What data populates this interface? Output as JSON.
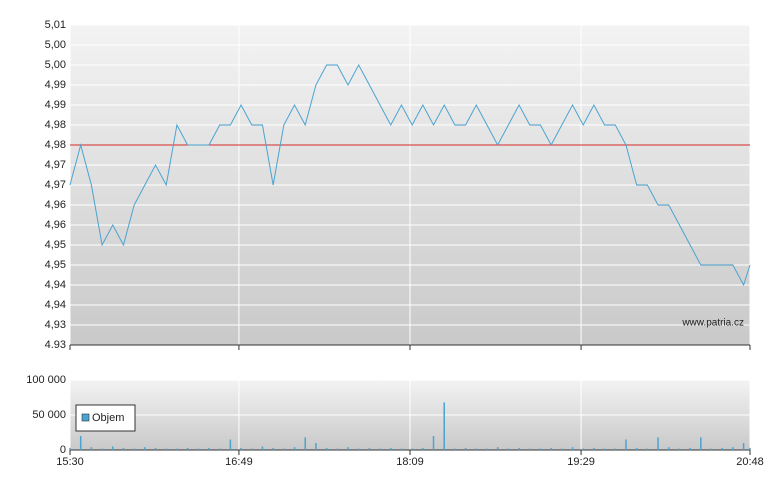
{
  "chart_data": [
    {
      "type": "line",
      "watermark": "www.patria.cz",
      "x": [
        "15:30",
        "15:35",
        "15:40",
        "15:45",
        "15:50",
        "15:55",
        "16:00",
        "16:05",
        "16:10",
        "16:15",
        "16:20",
        "16:25",
        "16:30",
        "16:35",
        "16:40",
        "16:45",
        "16:50",
        "16:55",
        "17:00",
        "17:05",
        "17:10",
        "17:15",
        "17:20",
        "17:25",
        "17:30",
        "17:35",
        "17:40",
        "17:45",
        "17:50",
        "17:55",
        "18:00",
        "18:05",
        "18:10",
        "18:15",
        "18:20",
        "18:25",
        "18:30",
        "18:35",
        "18:40",
        "18:45",
        "18:50",
        "18:55",
        "19:00",
        "19:05",
        "19:10",
        "19:15",
        "19:20",
        "19:25",
        "19:30",
        "19:35",
        "19:40",
        "19:45",
        "19:50",
        "19:55",
        "20:00",
        "20:05",
        "20:10",
        "20:15",
        "20:20",
        "20:25",
        "20:30",
        "20:35",
        "20:40",
        "20:45",
        "20:48"
      ],
      "series": [
        {
          "color": "#4aa3d1",
          "values": [
            4.97,
            4.98,
            4.97,
            4.955,
            4.96,
            4.955,
            4.965,
            4.97,
            4.975,
            4.97,
            4.985,
            4.98,
            4.98,
            4.98,
            4.985,
            4.985,
            4.99,
            4.985,
            4.985,
            4.97,
            4.985,
            4.99,
            4.985,
            4.995,
            5.0,
            5.0,
            4.995,
            5.0,
            4.995,
            4.99,
            4.985,
            4.99,
            4.985,
            4.99,
            4.985,
            4.99,
            4.985,
            4.985,
            4.99,
            4.985,
            4.98,
            4.985,
            4.99,
            4.985,
            4.985,
            4.98,
            4.985,
            4.99,
            4.985,
            4.99,
            4.985,
            4.985,
            4.98,
            4.97,
            4.97,
            4.965,
            4.965,
            4.96,
            4.955,
            4.95,
            4.95,
            4.95,
            4.95,
            4.945,
            4.95
          ]
        }
      ],
      "reference_line": 4.98,
      "reference_color": "#d42a2a",
      "xlim": [
        "15:30",
        "20:48"
      ],
      "xticks": [
        "15:30",
        "16:49",
        "18:09",
        "19:29",
        "20:48"
      ],
      "ylim": [
        4.93,
        5.01
      ],
      "yticks": [
        4.93,
        {
          "value": 4.935,
          "label": "4,93"
        },
        {
          "value": 4.94,
          "label": "4,94"
        },
        {
          "value": 4.945,
          "label": "4,94"
        },
        {
          "value": 4.95,
          "label": "4,95"
        },
        {
          "value": 4.955,
          "label": "4,95"
        },
        {
          "value": 4.96,
          "label": "4,96"
        },
        {
          "value": 4.965,
          "label": "4,96"
        },
        {
          "value": 4.97,
          "label": "4,97"
        },
        {
          "value": 4.975,
          "label": "4,97"
        },
        {
          "value": 4.98,
          "label": "4,98"
        },
        {
          "value": 4.985,
          "label": "4,98"
        },
        {
          "value": 4.99,
          "label": "4,99"
        },
        {
          "value": 4.995,
          "label": "4,99"
        },
        {
          "value": 5.0,
          "label": "5,00"
        },
        {
          "value": 5.005,
          "label": "5,00"
        },
        {
          "value": 5.01,
          "label": "5,01"
        }
      ],
      "grid": true
    },
    {
      "type": "bar",
      "x": [
        "15:30",
        "15:35",
        "15:40",
        "15:45",
        "15:50",
        "15:55",
        "16:00",
        "16:05",
        "16:10",
        "16:15",
        "16:20",
        "16:25",
        "16:30",
        "16:35",
        "16:40",
        "16:45",
        "16:50",
        "16:55",
        "17:00",
        "17:05",
        "17:10",
        "17:15",
        "17:20",
        "17:25",
        "17:30",
        "17:35",
        "17:40",
        "17:45",
        "17:50",
        "17:55",
        "18:00",
        "18:05",
        "18:10",
        "18:15",
        "18:20",
        "18:25",
        "18:30",
        "18:35",
        "18:40",
        "18:45",
        "18:50",
        "18:55",
        "19:00",
        "19:05",
        "19:10",
        "19:15",
        "19:20",
        "19:25",
        "19:30",
        "19:35",
        "19:40",
        "19:45",
        "19:50",
        "19:55",
        "20:00",
        "20:05",
        "20:10",
        "20:15",
        "20:20",
        "20:25",
        "20:30",
        "20:35",
        "20:40",
        "20:45",
        "20:48"
      ],
      "series": [
        {
          "name": "Objem",
          "color": "#4aa3d1",
          "values": [
            3000,
            20000,
            4000,
            2000,
            5000,
            3000,
            2000,
            4000,
            3000,
            2000,
            2000,
            3000,
            2000,
            3000,
            2000,
            15000,
            3000,
            2000,
            5000,
            3000,
            2000,
            4000,
            18000,
            10000,
            3000,
            2000,
            4000,
            2000,
            3000,
            2000,
            3000,
            2000,
            2000,
            3000,
            20000,
            68000,
            2000,
            3000,
            2000,
            2000,
            4000,
            2000,
            3000,
            2000,
            2000,
            3000,
            2000,
            4000,
            2000,
            3000,
            2000,
            2000,
            15000,
            3000,
            2000,
            18000,
            4000,
            2000,
            3000,
            18000,
            2000,
            3000,
            4000,
            10000,
            3000
          ]
        }
      ],
      "xlim": [
        "15:30",
        "20:48"
      ],
      "xticks": [
        "15:30",
        "16:49",
        "18:09",
        "19:29",
        "20:48"
      ],
      "ylim": [
        0,
        100000
      ],
      "yticks": [
        0,
        {
          "value": 50000,
          "label": "50 000"
        },
        {
          "value": 100000,
          "label": "100 000"
        }
      ],
      "grid": true,
      "legend": "top-left"
    }
  ]
}
